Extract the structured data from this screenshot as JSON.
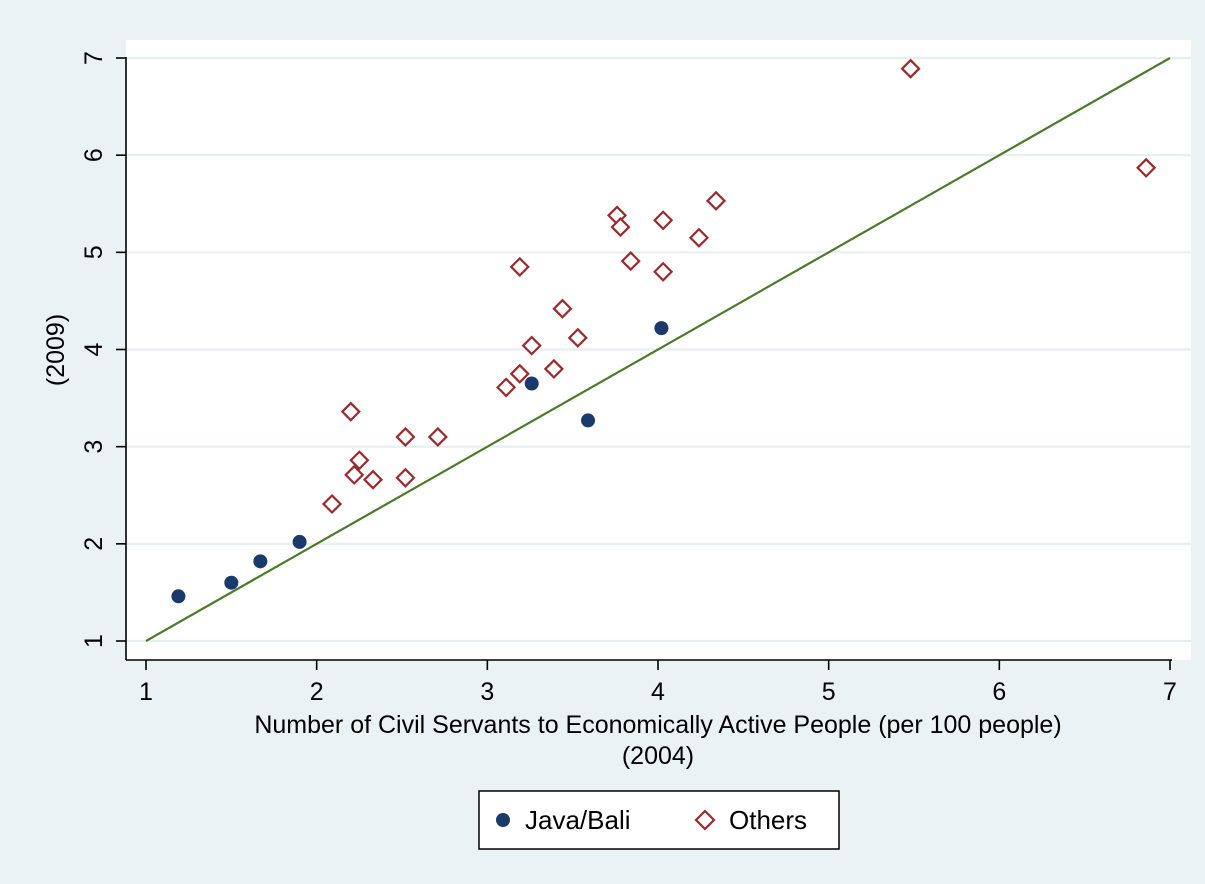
{
  "chart_data": {
    "type": "scatter",
    "title": "",
    "xlabel": "Number of Civil Servants to Economically Active People (per 100 people)",
    "xlabel2": "(2004)",
    "ylabel": "(2009)",
    "xlim": [
      1,
      7
    ],
    "ylim": [
      1,
      7
    ],
    "x_ticks": [
      1,
      2,
      3,
      4,
      5,
      6,
      7
    ],
    "y_ticks": [
      1,
      2,
      3,
      4,
      5,
      6,
      7
    ],
    "grid": true,
    "legend_position": "bottom",
    "series": [
      {
        "name": "Java/Bali",
        "marker": "filled-circle",
        "color": "#1a3a6c",
        "points": [
          {
            "x": 1.19,
            "y": 1.46
          },
          {
            "x": 1.5,
            "y": 1.6
          },
          {
            "x": 1.67,
            "y": 1.82
          },
          {
            "x": 1.9,
            "y": 2.02
          },
          {
            "x": 3.26,
            "y": 3.65
          },
          {
            "x": 3.59,
            "y": 3.27
          },
          {
            "x": 4.02,
            "y": 4.22
          }
        ]
      },
      {
        "name": "Others",
        "marker": "hollow-diamond",
        "color": "#9a2a2e",
        "points": [
          {
            "x": 2.09,
            "y": 2.41
          },
          {
            "x": 2.2,
            "y": 3.36
          },
          {
            "x": 2.22,
            "y": 2.71
          },
          {
            "x": 2.25,
            "y": 2.86
          },
          {
            "x": 2.33,
            "y": 2.66
          },
          {
            "x": 2.52,
            "y": 3.1
          },
          {
            "x": 2.52,
            "y": 2.68
          },
          {
            "x": 2.71,
            "y": 3.1
          },
          {
            "x": 3.11,
            "y": 3.61
          },
          {
            "x": 3.19,
            "y": 3.75
          },
          {
            "x": 3.19,
            "y": 4.85
          },
          {
            "x": 3.26,
            "y": 4.04
          },
          {
            "x": 3.39,
            "y": 3.8
          },
          {
            "x": 3.44,
            "y": 4.42
          },
          {
            "x": 3.53,
            "y": 4.12
          },
          {
            "x": 3.76,
            "y": 5.38
          },
          {
            "x": 3.78,
            "y": 5.26
          },
          {
            "x": 3.84,
            "y": 4.91
          },
          {
            "x": 4.03,
            "y": 5.33
          },
          {
            "x": 4.03,
            "y": 4.8
          },
          {
            "x": 4.24,
            "y": 5.15
          },
          {
            "x": 4.34,
            "y": 5.53
          },
          {
            "x": 5.48,
            "y": 6.89
          },
          {
            "x": 6.86,
            "y": 5.87
          }
        ]
      }
    ],
    "reference_line": {
      "from": {
        "x": 1,
        "y": 1
      },
      "to": {
        "x": 7,
        "y": 7
      },
      "color": "#4d7a2a"
    }
  }
}
